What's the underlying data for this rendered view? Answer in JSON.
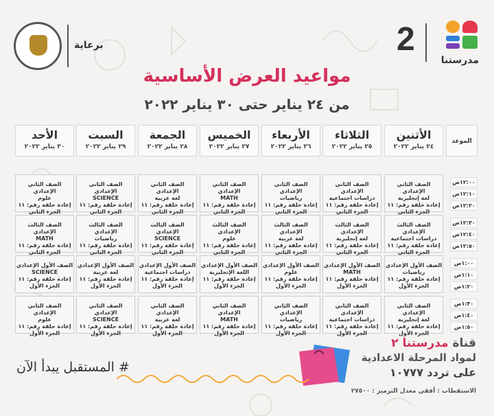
{
  "header": {
    "sponsor_label": "برعاية",
    "ministry_logo": "ministry-of-education-seal",
    "brand_number": "2",
    "brand_name": "مدرستنا"
  },
  "title": "مواعيد العرض الأساسية",
  "subtitle": "من ٢٤ يناير حتى ٣٠ يناير ٢٠٢٢",
  "schedule": {
    "time_header": "الموعد",
    "days": [
      {
        "name": "الأثنين",
        "date": "٢٤ يناير ٢٠٢٢"
      },
      {
        "name": "الثلاثاء",
        "date": "٢٥ يناير ٢٠٢٢"
      },
      {
        "name": "الأربعاء",
        "date": "٢٦ يناير ٢٠٢٢"
      },
      {
        "name": "الخميس",
        "date": "٢٧ يناير ٢٠٢٢"
      },
      {
        "name": "الجمعة",
        "date": "٢٨ يناير ٢٠٢٢"
      },
      {
        "name": "السبت",
        "date": "٢٩ يناير ٢٠٢٢"
      },
      {
        "name": "الأحد",
        "date": "٣٠ يناير ٢٠٢٢"
      }
    ],
    "times": [
      "١٢:٠٠ص",
      "١٢:١٠ص",
      "١٢:٢٠ص",
      "١٢:٣٠ص",
      "١٢:٤٠ص",
      "١٢:٥٠ص",
      "١:٠٠ص",
      "١:١٠ص",
      "١:٢٠ص",
      "١:٣٠ص",
      "١:٤٠ص",
      "١:٥٠ص"
    ],
    "rows": [
      [
        [
          "الصف الثاني الإعدادي",
          "لغة إنجليزية",
          "إعادة حلقة رقم: ١١",
          "الجزء الثاني"
        ],
        [
          "الصف الثاني الإعدادي",
          "دراسات اجتماعية",
          "إعادة حلقة رقم: ١١",
          "الجزء الثاني"
        ],
        [
          "الصف الثاني الإعدادي",
          "رياضيات",
          "إعادة حلقة رقم: ١١",
          "الجزء الثاني"
        ],
        [
          "الصف الثاني الإعدادي",
          "MATH",
          "إعادة حلقة رقم: ١١",
          "الجزء الثاني"
        ],
        [
          "الصف الثاني الإعدادي",
          "لغة عربية",
          "إعادة حلقة رقم: ١١",
          "الجزء الثاني"
        ],
        [
          "الصف الثاني الإعدادي",
          "SCIENCE",
          "إعادة حلقة رقم: ١١",
          "الجزء الثاني"
        ],
        [
          "الصف الثاني الإعدادي",
          "علوم",
          "إعادة حلقة رقم: ١١",
          "الجزء الثاني"
        ]
      ],
      [
        [
          "الصف الثالث الإعدادي",
          "دراسات اجتماعية",
          "إعادة حلقة رقم: ١١",
          "الجزء الثاني"
        ],
        [
          "الصف الثالث الإعدادي",
          "لغة إنجليزية",
          "إعادة حلقة رقم: ١١",
          "الجزء الثاني"
        ],
        [
          "الصف الثالث الإعدادي",
          "لغة عربية",
          "إعادة حلقة رقم: ١١",
          "الجزء الثاني"
        ],
        [
          "الصف الثالث الإعدادي",
          "علوم",
          "إعادة حلقة رقم: ١١",
          "الجزء الثاني"
        ],
        [
          "الصف الثالث الإعدادي",
          "SCIENCE",
          "إعادة حلقة رقم: ١١",
          "الجزء الثاني"
        ],
        [
          "الصف الثالث الإعدادي",
          "رياضيات",
          "إعادة حلقة رقم: ١١",
          "الجزء الثاني"
        ],
        [
          "الصف الثالث الإعدادي",
          "MATH",
          "إعادة حلقة رقم: ١١",
          "الجزء الثاني"
        ]
      ],
      [
        [
          "الصف الأول الإعدادي",
          "رياضيات",
          "إعادة حلقة رقم: ١١",
          "الجزء الأول"
        ],
        [
          "الصف الأول الإعدادي",
          "MATH",
          "إعادة حلقة رقم: ١١",
          "الجزء الأول"
        ],
        [
          "الصف الأول الإعدادي",
          "علوم",
          "إعادة حلقة رقم: ١١",
          "الجزء الأول"
        ],
        [
          "الصف الأول الإعدادي",
          "اللغة الإنجليزية",
          "إعادة حلقة رقم: ١١",
          "الجزء الأول"
        ],
        [
          "الصف الأول الإعدادي",
          "دراسات اجتماعية",
          "إعادة حلقة رقم: ١١",
          "الجزء الأول"
        ],
        [
          "الصف الأول الإعدادي",
          "لغة عربية",
          "إعادة حلقة رقم: ١١",
          "الجزء الأول"
        ],
        [
          "الصف الأول الإعدادي",
          "SCIENCE",
          "إعادة حلقة رقم: ١١",
          "الجزء الأول"
        ]
      ],
      [
        [
          "الصف الثاني الإعدادي",
          "لغة إنجليزية",
          "إعادة حلقة رقم: ١١",
          "الجزء الأول"
        ],
        [
          "الصف الثاني الإعدادي",
          "دراسات اجتماعية",
          "إعادة حلقة رقم: ١١",
          "الجزء الأول"
        ],
        [
          "الصف الثاني الإعدادي",
          "رياضيات",
          "إعادة حلقة رقم: ١١",
          "الجزء الأول"
        ],
        [
          "الصف الثاني الإعدادي",
          "MATH",
          "إعادة حلقة رقم: ١١",
          "الجزء الأول"
        ],
        [
          "الصف الثاني الإعدادي",
          "لغة عربية",
          "إعادة حلقة رقم: ١١",
          "الجزء الأول"
        ],
        [
          "الصف الثاني الإعدادي",
          "SCIENCE",
          "إعادة حلقة رقم: ١١",
          "الجزء الأول"
        ],
        [
          "الصف الثاني الإعدادي",
          "علوم",
          "إعادة حلقة رقم: ١١",
          "الجزء الأول"
        ]
      ]
    ]
  },
  "footer": {
    "channel_prefix": "قناة ",
    "channel_name": "مدرستنا ٢",
    "line2": "لمواد المرحلة الاعدادية",
    "frequency": "على تردد ١٠٧٧٧",
    "reception": "الاستقطاب : أفقي معدل الترميز : ٢٧٥٠٠",
    "hashtag": "# المستقبل يبدأ الآن"
  },
  "colors": {
    "accent_pink": "#d52f5b",
    "brand_orange": "#f4a228",
    "brand_blue": "#2e7fd6",
    "brand_purple": "#7a3fb8",
    "brand_green": "#46b04a",
    "brand_red": "#e6394f",
    "background": "#f4f3f1"
  }
}
